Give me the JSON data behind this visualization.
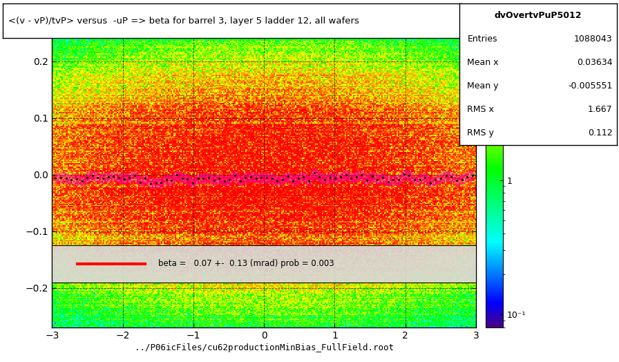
{
  "title": "<(v - vP)/tvP> versus  -uP => beta for barrel 3, layer 5 ladder 12, all wafers",
  "xlabel": "../P06icFiles/cu62productionMinBias_FullField.root",
  "stats_title": "dvOvertvPuP5012",
  "entries": "1088043",
  "mean_x": "0.03634",
  "mean_y": "-0.005551",
  "rms_x": "1.667",
  "rms_y": "0.112",
  "beta_text": "beta =   0.07 +-  0.13 (mrad) prob = 0.003",
  "xlim": [
    -3,
    3
  ],
  "ylim": [
    -0.27,
    0.27
  ],
  "yticks": [
    -0.2,
    -0.1,
    0.0,
    0.1,
    0.2
  ],
  "xticks": [
    -3,
    -2,
    -1,
    0,
    1,
    2,
    3
  ],
  "vmin": 0.08,
  "vmax": 15.0,
  "background_color": "#ffffff",
  "heatmap_noise_seed": 42,
  "colorbar_colors": [
    [
      0.0,
      "#4b0082"
    ],
    [
      0.08,
      "#0000ff"
    ],
    [
      0.18,
      "#0080ff"
    ],
    [
      0.28,
      "#00ffff"
    ],
    [
      0.4,
      "#00ff80"
    ],
    [
      0.52,
      "#00ff00"
    ],
    [
      0.62,
      "#80ff00"
    ],
    [
      0.72,
      "#ffff00"
    ],
    [
      0.82,
      "#ffa500"
    ],
    [
      0.91,
      "#ff4000"
    ],
    [
      1.0,
      "#ff0000"
    ]
  ]
}
